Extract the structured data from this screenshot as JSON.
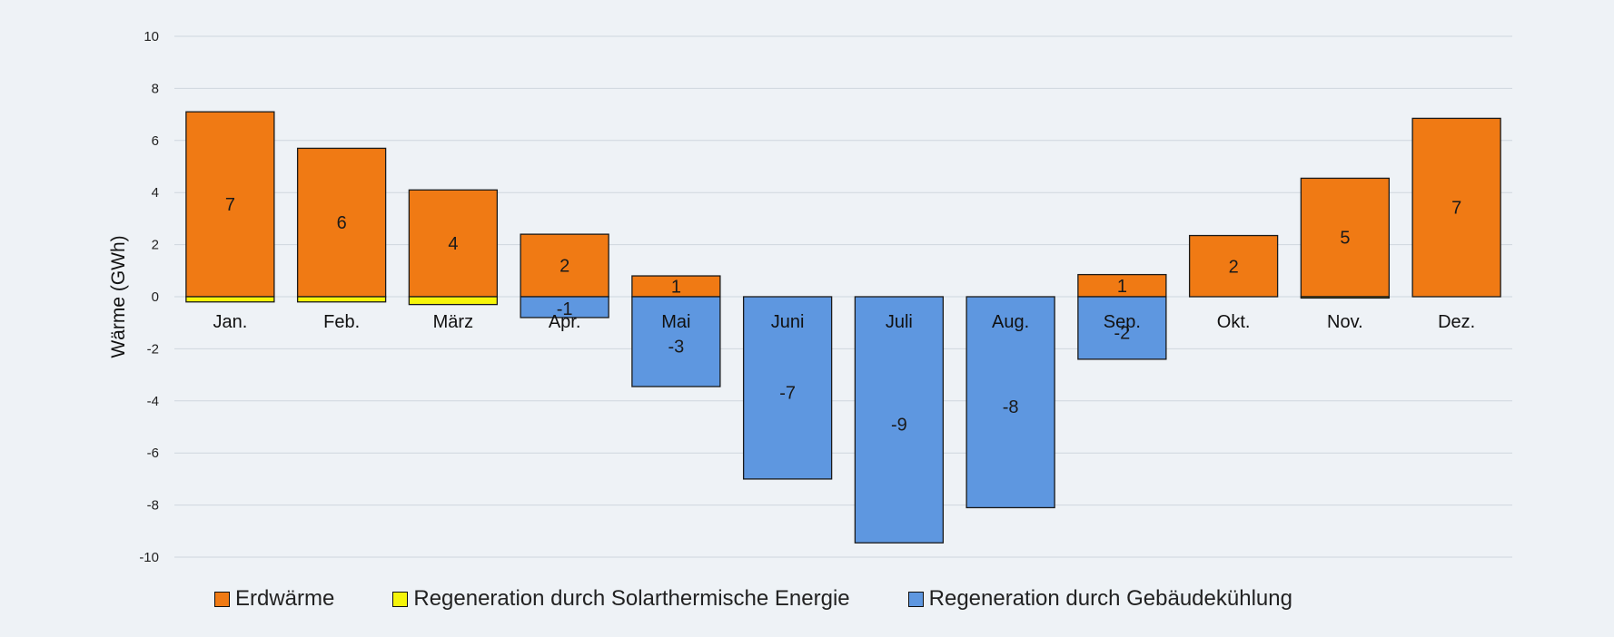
{
  "chart_data": {
    "type": "bar",
    "stacked": true,
    "ylabel": "Wärme (GWh)",
    "ylim": [
      -10,
      10
    ],
    "yticks": [
      -10,
      -8,
      -6,
      -4,
      -2,
      0,
      2,
      4,
      6,
      8,
      10
    ],
    "grid": true,
    "legend_position": "bottom",
    "categories": [
      "Jan.",
      "Feb.",
      "März",
      "Apr.",
      "Mai",
      "Juni",
      "Juli",
      "Aug.",
      "Sep.",
      "Okt.",
      "Nov.",
      "Dez."
    ],
    "series": [
      {
        "name": "Erdwärme",
        "color": "#f07a14",
        "values": [
          7.1,
          5.7,
          4.1,
          2.4,
          0.8,
          0,
          0,
          0,
          0.85,
          2.35,
          4.55,
          6.85
        ],
        "labels": [
          "7",
          "6",
          "4",
          "2",
          "1",
          "",
          "",
          "",
          "1",
          "2",
          "5",
          "7"
        ]
      },
      {
        "name": "Regeneration durch Solarthermische Energie",
        "color": "#f6f50a",
        "values": [
          -0.2,
          -0.2,
          -0.3,
          0,
          0,
          0,
          0,
          0,
          0,
          0,
          -0.05,
          0
        ],
        "labels": [
          "",
          "",
          "",
          "",
          "",
          "",
          "",
          "",
          "",
          "",
          "",
          ""
        ]
      },
      {
        "name": "Regeneration durch Gebäudekühlung",
        "color": "#5e97e0",
        "values": [
          0,
          0,
          0,
          -0.8,
          -3.45,
          -7.0,
          -9.45,
          -8.1,
          -2.4,
          0,
          0,
          0
        ],
        "labels": [
          "",
          "",
          "",
          "-1",
          "-3",
          "-7",
          "-9",
          "-8",
          "-2",
          "",
          "",
          ""
        ]
      }
    ]
  }
}
